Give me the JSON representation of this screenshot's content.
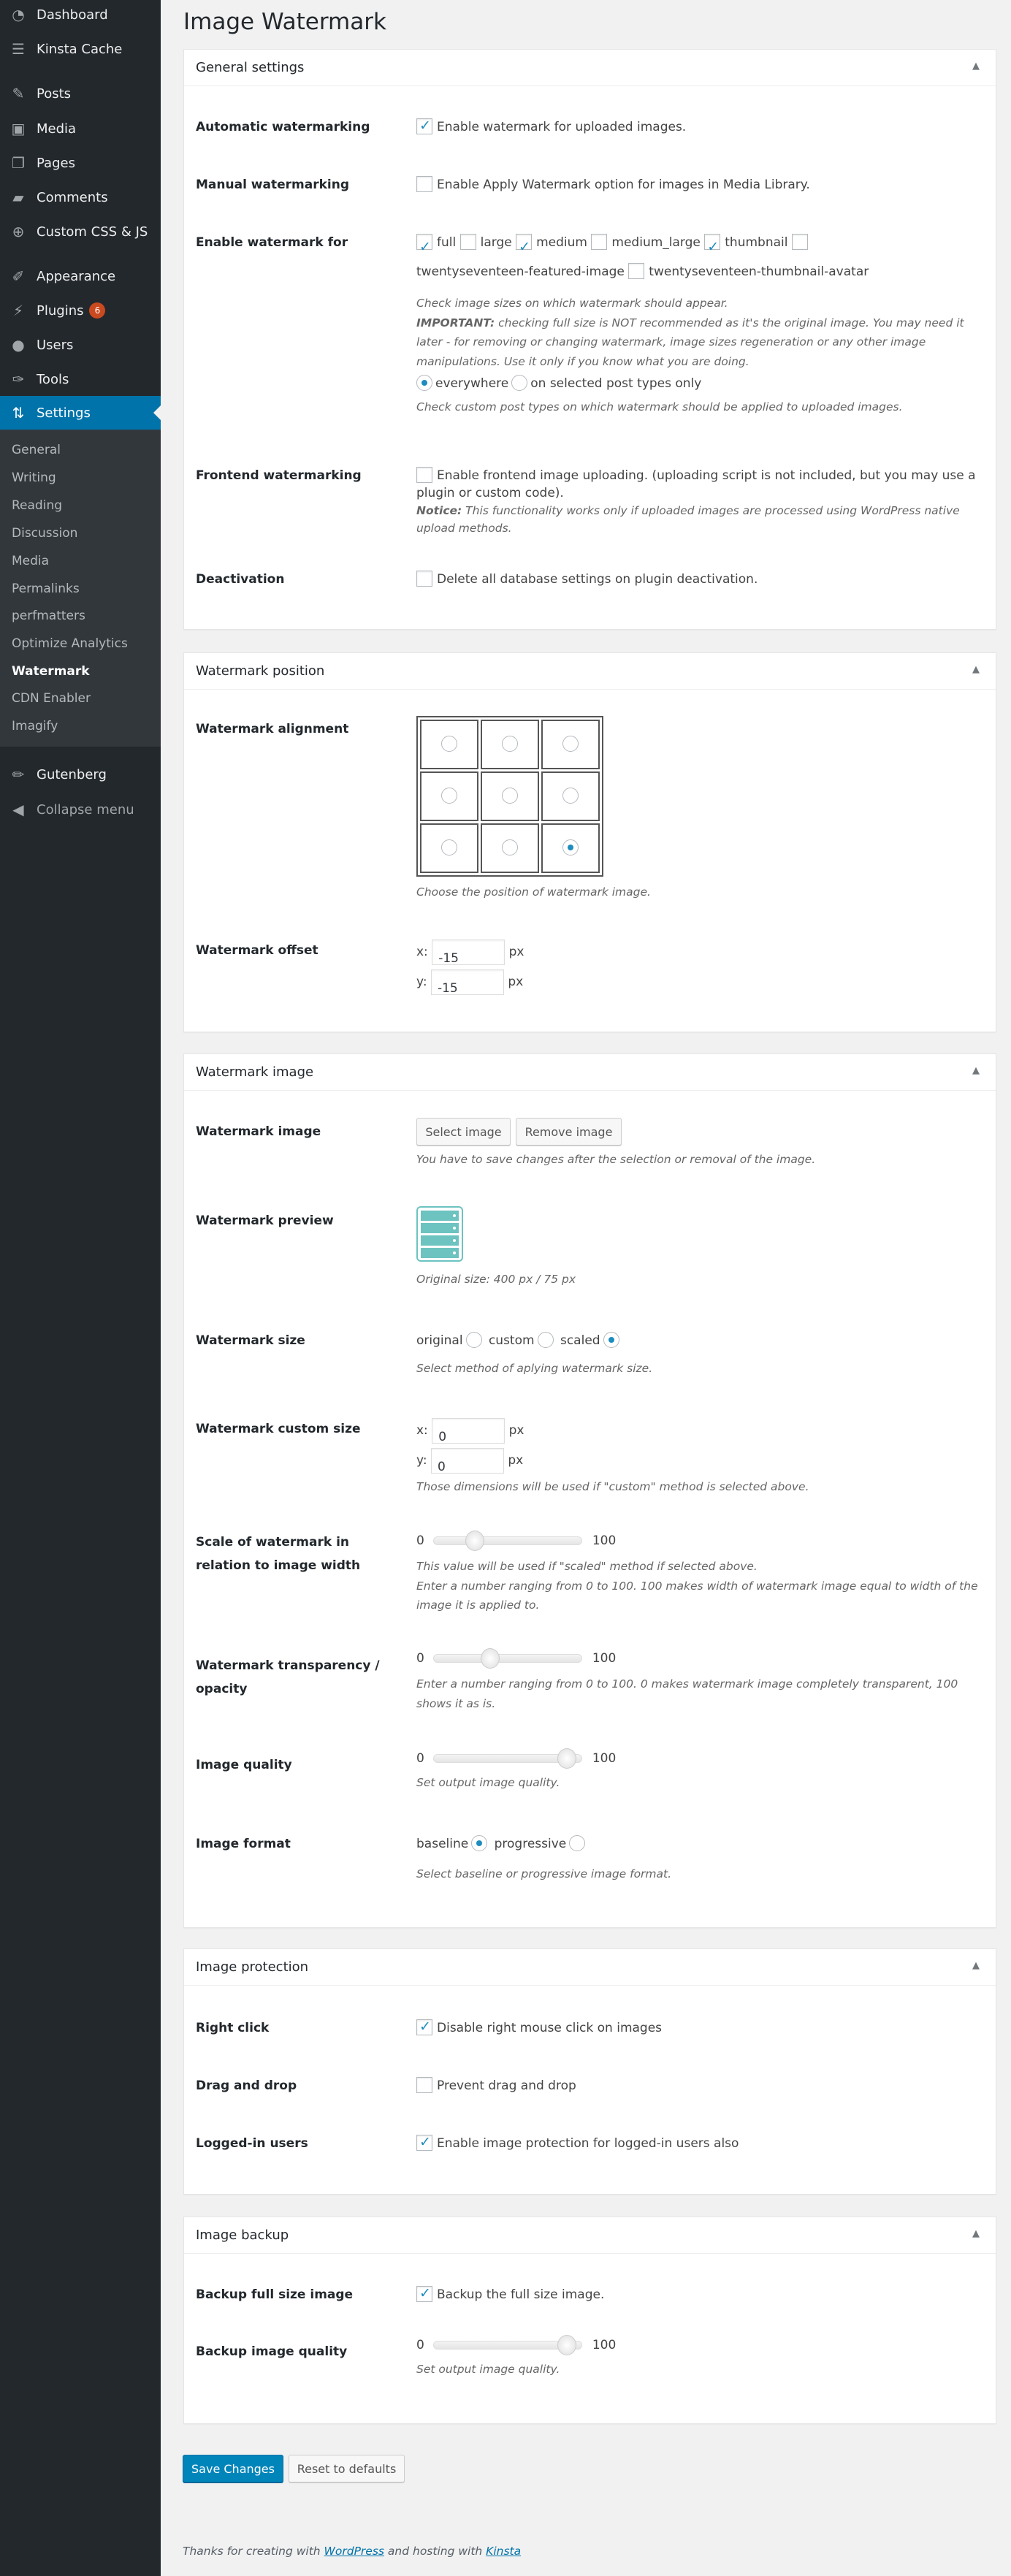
{
  "sidebar": {
    "menu": [
      {
        "label": "Dashboard",
        "icon": "dashboard-icon"
      },
      {
        "label": "Kinsta Cache",
        "icon": "server-icon"
      },
      {
        "label": "Posts",
        "icon": "pin-icon"
      },
      {
        "label": "Media",
        "icon": "media-icon"
      },
      {
        "label": "Pages",
        "icon": "pages-icon"
      },
      {
        "label": "Comments",
        "icon": "comment-icon"
      },
      {
        "label": "Custom CSS & JS",
        "icon": "plus-circle-icon"
      },
      {
        "label": "Appearance",
        "icon": "brush-icon"
      },
      {
        "label": "Plugins",
        "icon": "plugin-icon",
        "badge": "6"
      },
      {
        "label": "Users",
        "icon": "user-icon"
      },
      {
        "label": "Tools",
        "icon": "wrench-icon"
      },
      {
        "label": "Settings",
        "icon": "settings-icon"
      },
      {
        "label": "Gutenberg",
        "icon": "pencil-icon"
      },
      {
        "label": "Collapse menu",
        "icon": "collapse-icon"
      }
    ],
    "submenu": [
      "General",
      "Writing",
      "Reading",
      "Discussion",
      "Media",
      "Permalinks",
      "perfmatters",
      "Optimize Analytics",
      "Watermark",
      "CDN Enabler",
      "Imagify"
    ],
    "current_submenu": "Watermark"
  },
  "page_title": "Image Watermark",
  "general": {
    "title": "General settings",
    "automatic": {
      "label": "Automatic watermarking",
      "text": "Enable watermark for uploaded images.",
      "checked": true
    },
    "manual": {
      "label": "Manual watermarking",
      "text": "Enable Apply Watermark option for images in Media Library.",
      "checked": false
    },
    "enable_for": {
      "label": "Enable watermark for",
      "sizes": [
        {
          "name": "full",
          "checked": true
        },
        {
          "name": "large",
          "checked": false
        },
        {
          "name": "medium",
          "checked": true
        },
        {
          "name": "medium_large",
          "checked": false
        },
        {
          "name": "thumbnail",
          "checked": true
        },
        {
          "name": "twentyseventeen-featured-image",
          "checked": false
        },
        {
          "name": "twentyseventeen-thumbnail-avatar",
          "checked": false
        }
      ],
      "help1": "Check image sizes on which watermark should appear.",
      "important_label": "IMPORTANT:",
      "important_text": " checking full size is NOT recommended as it's the original image. You may need it later - for removing or changing watermark, image sizes regeneration or any other image manipulations. Use it only if you know what you are doing.",
      "opt_everywhere": "everywhere",
      "opt_selected": "on selected post types only",
      "selected": "everywhere",
      "help2": "Check custom post types on which watermark should be applied to uploaded images."
    },
    "frontend": {
      "label": "Frontend watermarking",
      "text": "Enable frontend image uploading. (uploading script is not included, but you may use a plugin or custom code).",
      "notice_label": "Notice:",
      "notice_text": " This functionality works only if uploaded images are processed using WordPress native upload methods.",
      "checked": false
    },
    "deactivation": {
      "label": "Deactivation",
      "text": "Delete all database settings on plugin deactivation.",
      "checked": false
    }
  },
  "position": {
    "title": "Watermark position",
    "alignment_label": "Watermark alignment",
    "alignment_selected": "bottom-right",
    "alignment_help": "Choose the position of watermark image.",
    "offset_label": "Watermark offset",
    "x_label": "x:",
    "y_label": "y:",
    "x": "-15",
    "y": "-15",
    "unit": "px"
  },
  "image": {
    "title": "Watermark image",
    "image_label": "Watermark image",
    "select": "Select image",
    "remove": "Remove image",
    "image_help": "You have to save changes after the selection or removal of the image.",
    "preview_label": "Watermark preview",
    "original_size": "Original size: 400 px / 75 px",
    "size_label": "Watermark size",
    "size_original": "original",
    "size_custom": "custom",
    "size_scaled": "scaled",
    "size_selected": "scaled",
    "size_help": "Select method of aplying watermark size.",
    "custom_label": "Watermark custom size",
    "x_label": "x:",
    "y_label": "y:",
    "x": "0",
    "y": "0",
    "unit": "px",
    "custom_help": "Those dimensions will be used if \"custom\" method is selected above.",
    "scale_label": "Scale of watermark in relation to image width",
    "scale_value": 28,
    "scale_help1": "This value will be used if \"scaled\" method if selected above.",
    "scale_help2": "Enter a number ranging from 0 to 100. 100 makes width of watermark image equal to width of the image it is applied to.",
    "opacity_label": "Watermark transparency / opacity",
    "opacity_value": 38,
    "opacity_help": "Enter a number ranging from 0 to 100. 0 makes watermark image completely transparent, 100 shows it as is.",
    "quality_label": "Image quality",
    "quality_value": 90,
    "quality_help": "Set output image quality.",
    "format_label": "Image format",
    "format_baseline": "baseline",
    "format_progressive": "progressive",
    "format_selected": "baseline",
    "format_help": "Select baseline or progressive image format.",
    "min": "0",
    "max": "100"
  },
  "protection": {
    "title": "Image protection",
    "right_click": {
      "label": "Right click",
      "text": "Disable right mouse click on images",
      "checked": true
    },
    "drag": {
      "label": "Drag and drop",
      "text": "Prevent drag and drop",
      "checked": false
    },
    "logged": {
      "label": "Logged-in users",
      "text": "Enable image protection for logged-in users also",
      "checked": true
    }
  },
  "backup": {
    "title": "Image backup",
    "full": {
      "label": "Backup full size image",
      "text": "Backup the full size image.",
      "checked": true
    },
    "quality_label": "Backup image quality",
    "quality_value": 90,
    "quality_help": "Set output image quality.",
    "min": "0",
    "max": "100"
  },
  "actions": {
    "save": "Save Changes",
    "reset": "Reset to defaults"
  },
  "footer": {
    "pre": "Thanks for creating with ",
    "wp": "WordPress",
    "mid": " and hosting with ",
    "kinsta": "Kinsta"
  },
  "colors": {
    "accent": "#0073aa",
    "sidebar": "#23282d",
    "badge": "#ca4a1f",
    "watermark_icon": "#6cc3c0"
  }
}
